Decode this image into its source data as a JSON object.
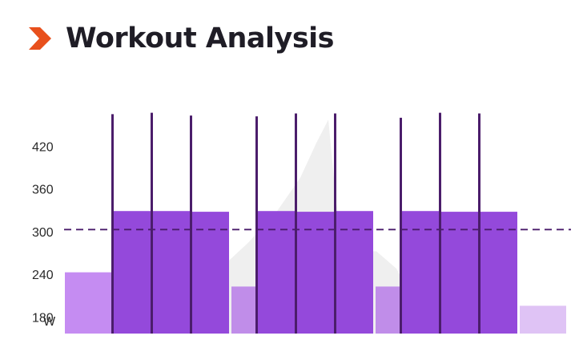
{
  "header": {
    "title": "Workout Analysis",
    "logo_icon": "chevron-right-icon"
  },
  "colors": {
    "logo": "#e8501c",
    "work": "#8e3fd9",
    "work_alt": "#9243e0",
    "recovery": "#c08de9",
    "warmup": "#c58cf2",
    "cooldown": "#dfc3f5",
    "marker": "#4b1d6b",
    "threshold": "#4b1d6b",
    "terrain": "#efefef"
  },
  "chart_data": {
    "type": "bar",
    "title": "Workout Analysis",
    "ylabel": "W",
    "ylim": [
      158,
      463
    ],
    "y_ticks": [
      420,
      360,
      300,
      240,
      180
    ],
    "threshold_line": 304,
    "segments": [
      {
        "kind": "warmup",
        "width": 58,
        "value": 244
      },
      {
        "kind": "work",
        "width": 46,
        "value": 330,
        "marker": 466
      },
      {
        "kind": "work",
        "width": 46,
        "value": 330,
        "marker": 468
      },
      {
        "kind": "work",
        "width": 46,
        "value": 329,
        "marker": 464
      },
      {
        "kind": "recovery",
        "width": 30,
        "value": 224
      },
      {
        "kind": "work",
        "width": 46,
        "value": 330,
        "marker": 463
      },
      {
        "kind": "work",
        "width": 46,
        "value": 329,
        "marker": 467
      },
      {
        "kind": "work",
        "width": 46,
        "value": 330,
        "marker": 467
      },
      {
        "kind": "recovery",
        "width": 30,
        "value": 224
      },
      {
        "kind": "work",
        "width": 46,
        "value": 330,
        "marker": 461
      },
      {
        "kind": "work",
        "width": 46,
        "value": 329,
        "marker": 468
      },
      {
        "kind": "work",
        "width": 46,
        "value": 329,
        "marker": 467
      },
      {
        "kind": "cooldown",
        "width": 58,
        "value": 197
      }
    ],
    "terrain_profile": [
      [
        0,
        150
      ],
      [
        150,
        150
      ],
      [
        200,
        170
      ],
      [
        240,
        195
      ],
      [
        275,
        225
      ],
      [
        310,
        255
      ],
      [
        345,
        290
      ],
      [
        375,
        330
      ],
      [
        395,
        370
      ],
      [
        410,
        397
      ],
      [
        420,
        300
      ],
      [
        430,
        250
      ],
      [
        440,
        255
      ],
      [
        455,
        245
      ],
      [
        470,
        245
      ],
      [
        495,
        225
      ],
      [
        510,
        200
      ],
      [
        530,
        180
      ],
      [
        560,
        160
      ],
      [
        600,
        150
      ],
      [
        733,
        150
      ]
    ]
  }
}
